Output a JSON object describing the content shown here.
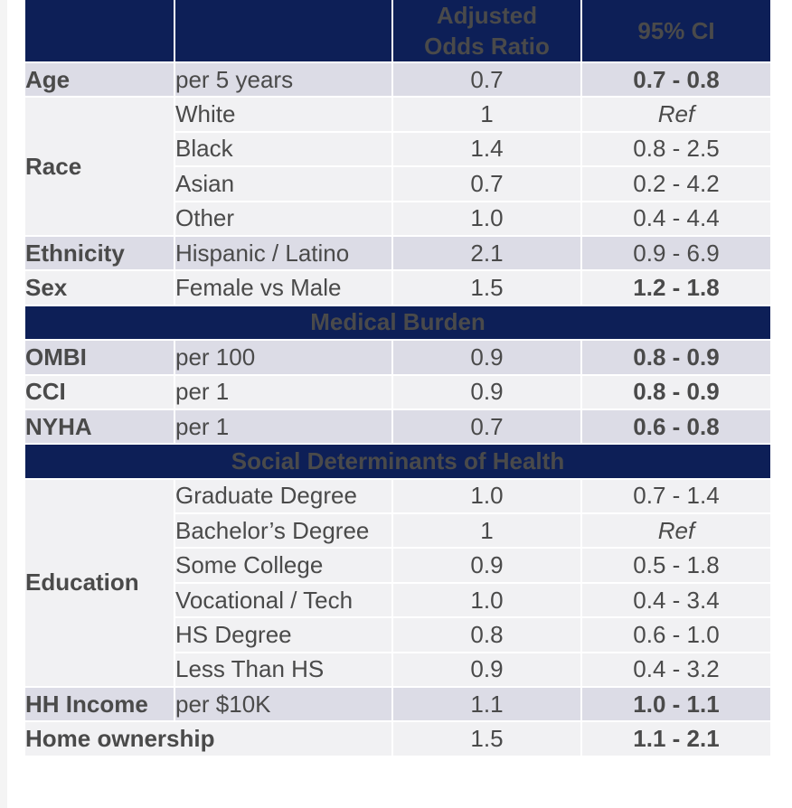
{
  "header": {
    "col3": "Adjusted Odds Ratio",
    "col3_line1": "Adjusted",
    "col3_line2": "Odds Ratio",
    "col4": "95% CI"
  },
  "rows_demographics": [
    {
      "cat": "Age",
      "sub": "per 5 years",
      "or": "0.7",
      "ci": "0.7 - 0.8"
    },
    {
      "cat": "Race",
      "sub": "White",
      "or": "1",
      "ci": "Ref"
    },
    {
      "cat": "",
      "sub": "Black",
      "or": "1.4",
      "ci": "0.8 - 2.5"
    },
    {
      "cat": "",
      "sub": "Asian",
      "or": "0.7",
      "ci": "0.2 - 4.2"
    },
    {
      "cat": "",
      "sub": "Other",
      "or": "1.0",
      "ci": "0.4 - 4.4"
    },
    {
      "cat": "Ethnicity",
      "sub": "Hispanic / Latino",
      "or": "2.1",
      "ci": "0.9 - 6.9"
    },
    {
      "cat": "Sex",
      "sub": "Female vs Male",
      "or": "1.5",
      "ci": "1.2 - 1.8"
    }
  ],
  "section_medical": "Medical Burden",
  "rows_medical": [
    {
      "cat": "OMBI",
      "sub": "per 100",
      "or": "0.9",
      "ci": "0.8 - 0.9"
    },
    {
      "cat": "CCI",
      "sub": "per 1",
      "or": "0.9",
      "ci": "0.8 - 0.9"
    },
    {
      "cat": "NYHA",
      "sub": "per 1",
      "or": "0.7",
      "ci": "0.6 - 0.8"
    }
  ],
  "section_social": "Social Determinants of Health",
  "rows_social": [
    {
      "cat": "Education",
      "sub": "Graduate Degree",
      "or": "1.0",
      "ci": "0.7 - 1.4"
    },
    {
      "cat": "",
      "sub": "Bachelor’s Degree",
      "or": "1",
      "ci": "Ref"
    },
    {
      "cat": "",
      "sub": "Some College",
      "or": "0.9",
      "ci": "0.5 - 1.8"
    },
    {
      "cat": "",
      "sub": "Vocational / Tech",
      "or": "1.0",
      "ci": "0.4 - 3.4"
    },
    {
      "cat": "",
      "sub": "HS Degree",
      "or": "0.8",
      "ci": "0.6 - 1.0"
    },
    {
      "cat": "",
      "sub": "Less Than HS",
      "or": "0.9",
      "ci": "0.4 - 3.2"
    },
    {
      "cat": "HH Income",
      "sub": "per $10K",
      "or": "1.1",
      "ci": "1.0 - 1.1"
    },
    {
      "cat": "Home ownership",
      "sub": "",
      "or": "1.5",
      "ci": "1.1 - 2.1"
    }
  ],
  "colors": {
    "header_bg": "#0d1f57",
    "shade": "#dcdce6",
    "light": "#f1f1f3"
  }
}
